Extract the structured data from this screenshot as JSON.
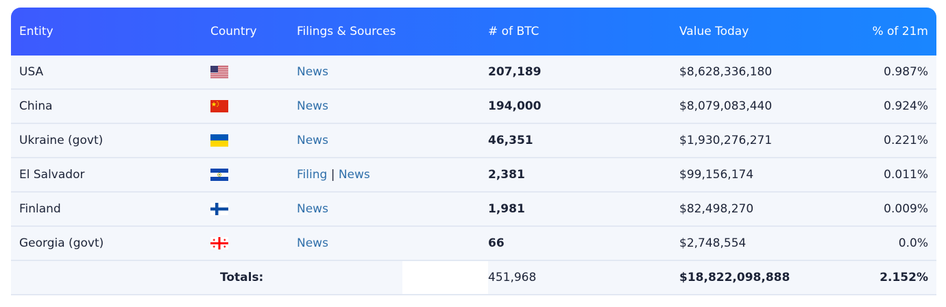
{
  "table": {
    "headers": {
      "entity": "Entity",
      "country": "Country",
      "filings": "Filings & Sources",
      "btc": "# of BTC",
      "value": "Value Today",
      "pct": "% of 21m"
    },
    "rows": [
      {
        "entity": "USA",
        "flag": "us-flag-icon",
        "news": "News",
        "btc": "207,189",
        "value": "$8,628,336,180",
        "pct": "0.987%"
      },
      {
        "entity": "China",
        "flag": "china-flag-icon",
        "news": "News",
        "btc": "194,000",
        "value": "$8,079,083,440",
        "pct": "0.924%"
      },
      {
        "entity": "Ukraine (govt)",
        "flag": "ukraine-flag-icon",
        "news": "News",
        "btc": "46,351",
        "value": "$1,930,276,271",
        "pct": "0.221%"
      },
      {
        "entity": "El Salvador",
        "flag": "el-salvador-flag-icon",
        "filing": "Filing",
        "sep": "|",
        "news": "News",
        "btc": "2,381",
        "value": "$99,156,174",
        "pct": "0.011%"
      },
      {
        "entity": "Finland",
        "flag": "finland-flag-icon",
        "news": "News",
        "btc": "1,981",
        "value": "$82,498,270",
        "pct": "0.009%"
      },
      {
        "entity": "Georgia (govt)",
        "flag": "georgia-flag-icon",
        "news": "News",
        "btc": "66",
        "value": "$2,748,554",
        "pct": "0.0%"
      }
    ],
    "totals": {
      "label": "Totals:",
      "btc": "451,968",
      "value": "$18,822,098,888",
      "pct": "2.152%"
    }
  },
  "colors": {
    "header_gradient_start": "#3d5afe",
    "header_gradient_end": "#1a86ff",
    "link": "#2f6faa",
    "row_bg": "#f4f7fc"
  }
}
